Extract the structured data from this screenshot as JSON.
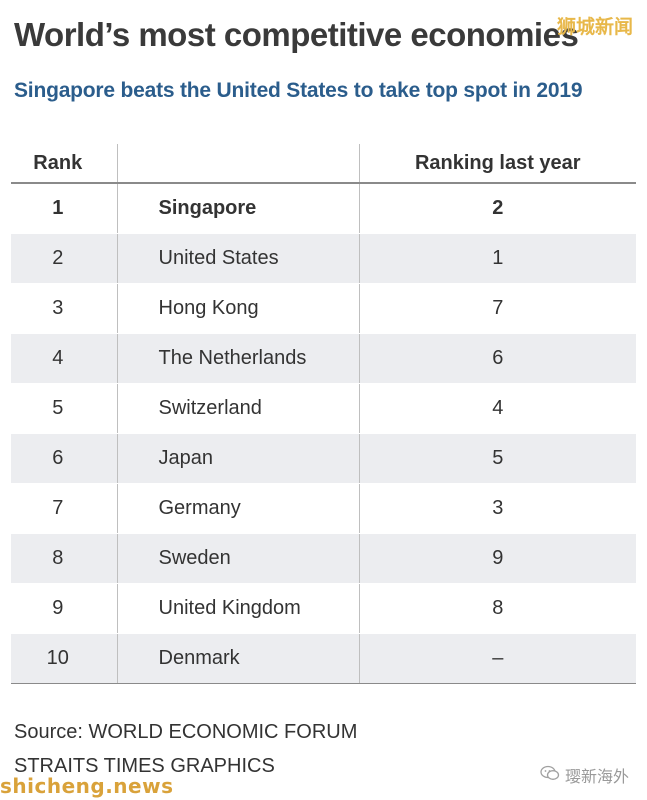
{
  "title": "World’s most competitive economies",
  "subtitle": "Singapore beats the United States to take top spot in 2019",
  "table": {
    "headers": [
      "Rank",
      "",
      "Ranking last year"
    ],
    "rows": [
      {
        "rank": "1",
        "country": "Singapore",
        "last_year": "2"
      },
      {
        "rank": "2",
        "country": "United States",
        "last_year": "1"
      },
      {
        "rank": "3",
        "country": "Hong Kong",
        "last_year": "7"
      },
      {
        "rank": "4",
        "country": "The Netherlands",
        "last_year": "6"
      },
      {
        "rank": "5",
        "country": "Switzerland",
        "last_year": "4"
      },
      {
        "rank": "6",
        "country": "Japan",
        "last_year": "5"
      },
      {
        "rank": "7",
        "country": "Germany",
        "last_year": "3"
      },
      {
        "rank": "8",
        "country": "Sweden",
        "last_year": "9"
      },
      {
        "rank": "9",
        "country": "United Kingdom",
        "last_year": "8"
      },
      {
        "rank": "10",
        "country": "Denmark",
        "last_year": "–"
      }
    ]
  },
  "source": "Source: WORLD ECONOMIC FORUM",
  "credit": "STRAITS TIMES GRAPHICS",
  "watermarks": {
    "top_right": "狮城新闻",
    "bottom_right": "璎新海外",
    "bottom_left": "shicheng.news"
  },
  "colors": {
    "subtitle": "#2b5d8c",
    "row_alt_background": "#ecedf0",
    "watermark_gold": "#e8b84a"
  }
}
